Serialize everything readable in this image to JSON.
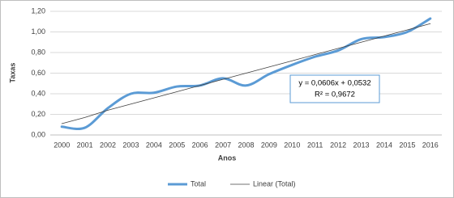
{
  "chart_data": {
    "type": "line",
    "x_label": "Anos",
    "y_label": "Taxas",
    "categories": [
      "2000",
      "2001",
      "2002",
      "2003",
      "2004",
      "2005",
      "2006",
      "2007",
      "2008",
      "2009",
      "2010",
      "2011",
      "2012",
      "2013",
      "2014",
      "2015",
      "2016"
    ],
    "series": [
      {
        "name": "Total",
        "color": "#5b9bd5",
        "smooth": true,
        "values": [
          0.08,
          0.07,
          0.26,
          0.4,
          0.41,
          0.47,
          0.48,
          0.55,
          0.48,
          0.59,
          0.68,
          0.76,
          0.82,
          0.93,
          0.95,
          1.0,
          1.13
        ]
      },
      {
        "name": "Linear (Total)",
        "color": "#404040",
        "smooth": false,
        "values": [
          0.11,
          0.17,
          0.24,
          0.3,
          0.36,
          0.42,
          0.48,
          0.54,
          0.6,
          0.66,
          0.72,
          0.78,
          0.84,
          0.9,
          0.96,
          1.02,
          1.08
        ]
      }
    ],
    "ylim": [
      0,
      1.2
    ],
    "yticks": [
      {
        "value": 0,
        "label": "0,00"
      },
      {
        "value": 0.2,
        "label": "0,20"
      },
      {
        "value": 0.4,
        "label": "0,40"
      },
      {
        "value": 0.6,
        "label": "0,60"
      },
      {
        "value": 0.8,
        "label": "0,80"
      },
      {
        "value": 1,
        "label": "1,00"
      },
      {
        "value": 1.2,
        "label": "1,20"
      }
    ],
    "grid": true,
    "legend": "bottom",
    "annotations": [
      "y = 0,0606x + 0,0532",
      "R² = 0,9672"
    ]
  }
}
